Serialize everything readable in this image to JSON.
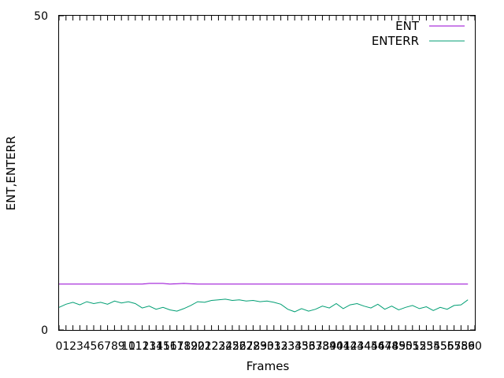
{
  "chart_data": {
    "type": "line",
    "xlabel": "Frames",
    "ylabel": "ENT,ENTERR",
    "ylim": [
      0,
      50
    ],
    "xlim": [
      0,
      60
    ],
    "y_ticks": [
      "0",
      "50"
    ],
    "x_tick_labels": [
      "0",
      "1",
      "2",
      "3",
      "4",
      "5",
      "6",
      "7",
      "8",
      "9",
      "10",
      "11",
      "12",
      "13",
      "14",
      "15",
      "16",
      "17",
      "18",
      "19",
      "20",
      "21",
      "22",
      "23",
      "24",
      "25",
      "26",
      "27",
      "28",
      "29",
      "30",
      "31",
      "32",
      "33",
      "34",
      "35",
      "36",
      "37",
      "38",
      "39",
      "40",
      "41",
      "42",
      "43",
      "44",
      "45",
      "46",
      "47",
      "48",
      "49",
      "50",
      "51",
      "52",
      "53",
      "54",
      "55",
      "56",
      "57",
      "58",
      "59",
      "60"
    ],
    "grid": false,
    "legend_position": "top-right",
    "series": [
      {
        "name": "ENT",
        "color": "#9400d3",
        "x": [
          0,
          6,
          12,
          13,
          14,
          15,
          16,
          18,
          20,
          21,
          22,
          24,
          30,
          36,
          42,
          48,
          54,
          59
        ],
        "y": [
          7.3,
          7.3,
          7.3,
          7.4,
          7.4,
          7.4,
          7.3,
          7.4,
          7.3,
          7.3,
          7.3,
          7.3,
          7.3,
          7.3,
          7.3,
          7.3,
          7.3,
          7.3
        ]
      },
      {
        "name": "ENTERR",
        "color": "#009e73",
        "x": [
          0,
          1,
          2,
          3,
          4,
          5,
          6,
          7,
          8,
          9,
          10,
          11,
          12,
          13,
          14,
          15,
          16,
          17,
          18,
          19,
          20,
          21,
          22,
          23,
          24,
          25,
          26,
          27,
          28,
          29,
          30,
          31,
          32,
          33,
          34,
          35,
          36,
          37,
          38,
          39,
          40,
          41,
          42,
          43,
          44,
          45,
          46,
          47,
          48,
          49,
          50,
          51,
          52,
          53,
          54,
          55,
          56,
          57,
          58,
          59
        ],
        "y": [
          3.6,
          4.1,
          4.4,
          4.0,
          4.5,
          4.2,
          4.4,
          4.1,
          4.6,
          4.3,
          4.5,
          4.2,
          3.5,
          3.8,
          3.3,
          3.6,
          3.2,
          3.0,
          3.4,
          3.9,
          4.5,
          4.4,
          4.7,
          4.8,
          4.9,
          4.7,
          4.8,
          4.6,
          4.7,
          4.5,
          4.6,
          4.4,
          4.1,
          3.3,
          2.9,
          3.4,
          3.0,
          3.3,
          3.8,
          3.5,
          4.2,
          3.4,
          4.0,
          4.2,
          3.8,
          3.5,
          4.1,
          3.3,
          3.8,
          3.2,
          3.6,
          3.9,
          3.4,
          3.7,
          3.1,
          3.6,
          3.3,
          3.9,
          4.0,
          4.8
        ]
      }
    ]
  }
}
